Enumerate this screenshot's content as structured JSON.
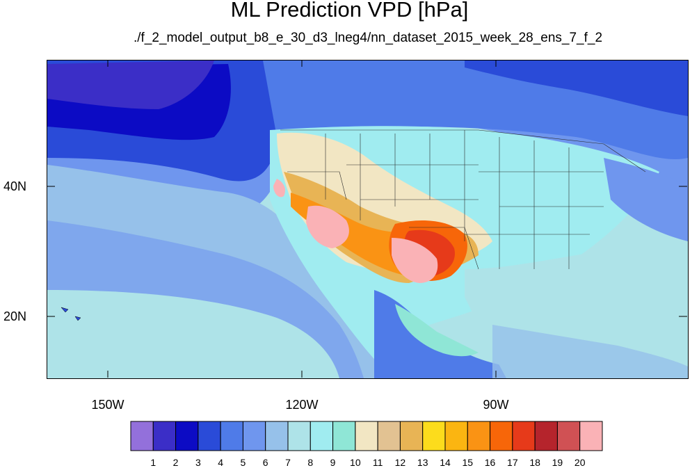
{
  "title": "ML Prediction VPD [hPa]",
  "subtitle": "./f_2_model_output_b8_e_30_d3_lneg4/nn_dataset_2015_week_28_ens_7_f_2",
  "axes": {
    "y_labels": [
      "40N",
      "20N"
    ],
    "x_labels": [
      "150W",
      "120W",
      "90W"
    ]
  },
  "colorbar": {
    "tick_labels": [
      "1",
      "2",
      "3",
      "4",
      "5",
      "6",
      "7",
      "8",
      "9",
      "10",
      "11",
      "12",
      "13",
      "14",
      "15",
      "16",
      "17",
      "18",
      "19",
      "20"
    ],
    "colors": [
      "#9370db",
      "#3b2ec7",
      "#0c0bc4",
      "#2a4bd8",
      "#4f7be8",
      "#6f96ee",
      "#96c1ea",
      "#aee3e8",
      "#a0ecf0",
      "#8fe6d6",
      "#f2e6c3",
      "#e2c292",
      "#e8b455",
      "#fcdc1c",
      "#fbb511",
      "#fa9314",
      "#f76609",
      "#e63a1a",
      "#b5242c",
      "#d05154",
      "#fab2b6"
    ]
  },
  "map": {
    "region": "North America and Eastern Pacific",
    "variable": "VPD",
    "units": "hPa"
  }
}
